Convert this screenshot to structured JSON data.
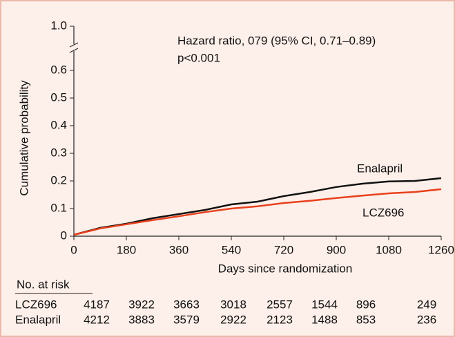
{
  "chart_data": {
    "type": "line",
    "annotations": [
      "Hazard ratio, 079 (95% CI, 0.71–0.89)",
      "p<0.001"
    ],
    "x_label": "Days since randomization",
    "y_label": "Cumulative probability",
    "x": [
      0,
      90,
      180,
      270,
      360,
      450,
      540,
      630,
      720,
      810,
      900,
      990,
      1080,
      1170,
      1260
    ],
    "series": [
      {
        "name": "Enalapril",
        "color": "#111111",
        "values": [
          0.005,
          0.03,
          0.045,
          0.065,
          0.08,
          0.095,
          0.115,
          0.125,
          0.145,
          0.16,
          0.178,
          0.19,
          0.198,
          0.2,
          0.21
        ]
      },
      {
        "name": "LCZ696",
        "color": "#e8401c",
        "values": [
          0.005,
          0.028,
          0.043,
          0.058,
          0.072,
          0.087,
          0.1,
          0.108,
          0.12,
          0.128,
          0.138,
          0.147,
          0.155,
          0.16,
          0.17
        ]
      }
    ],
    "xlim": [
      0,
      1260
    ],
    "xticks": [
      0,
      180,
      360,
      540,
      720,
      900,
      1080,
      1260
    ],
    "ylim": [
      0,
      0.6
    ],
    "yticks": [
      0,
      0.1,
      0.2,
      0.3,
      0.4,
      0.5,
      0.6
    ],
    "ybreak_ticks": [
      {
        "value": 1,
        "label": "1.0"
      }
    ],
    "risk_table": {
      "title": "No. at risk",
      "rows": [
        {
          "name": "LCZ696",
          "values": [
            4187,
            3922,
            3663,
            3018,
            2557,
            1544,
            896,
            249
          ]
        },
        {
          "name": "Enalapril",
          "values": [
            4212,
            3883,
            3579,
            2922,
            2123,
            1488,
            853,
            236
          ]
        }
      ]
    }
  }
}
